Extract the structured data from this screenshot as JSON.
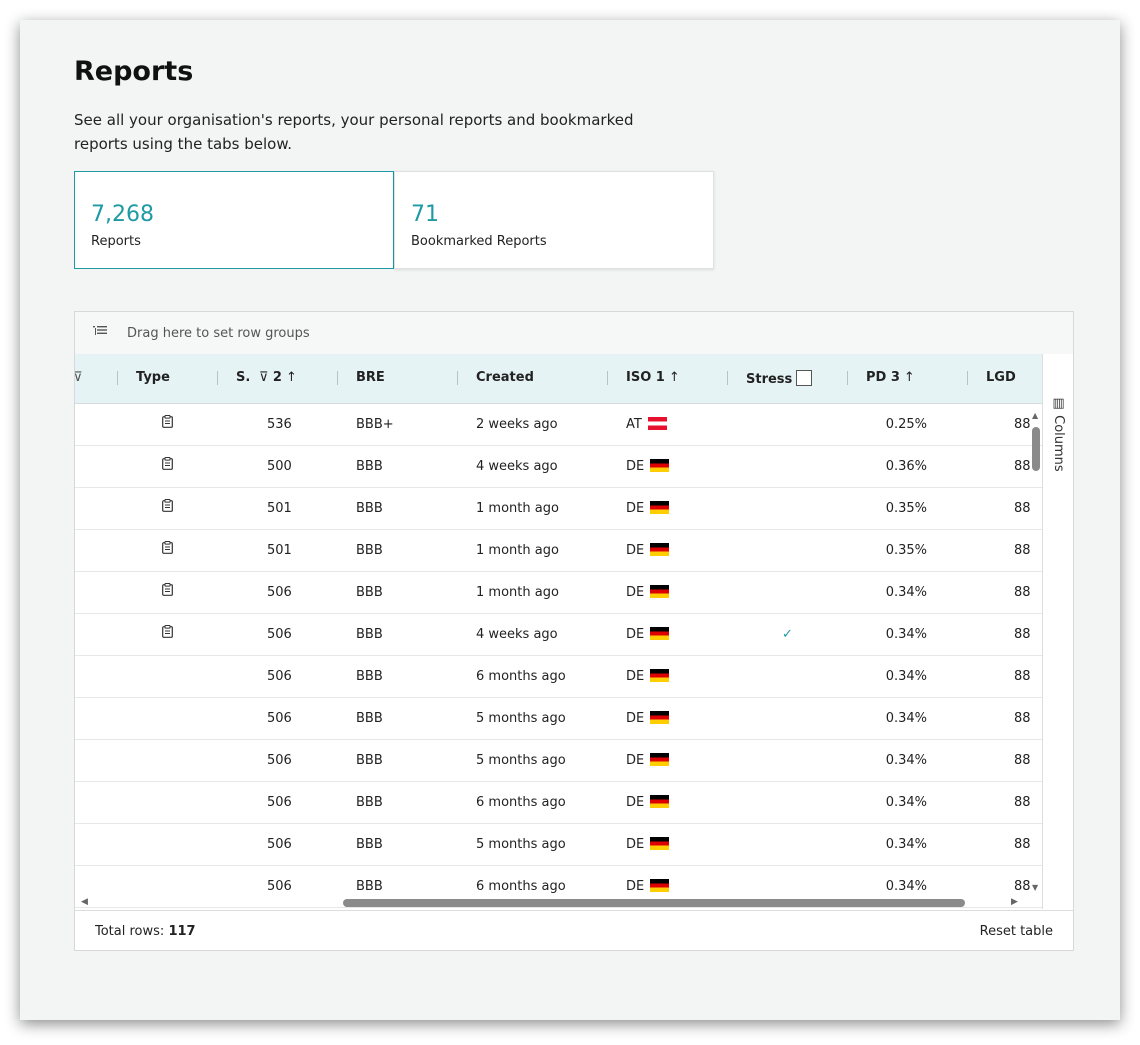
{
  "page": {
    "title": "Reports",
    "description": "See all your organisation's reports, your personal reports and bookmarked reports using the tabs below."
  },
  "tabs": [
    {
      "count": "7,268",
      "label": "Reports"
    },
    {
      "count": "71",
      "label": "Bookmarked Reports"
    }
  ],
  "group_bar": {
    "icon": "row-group-icon",
    "text": "Drag here to set row groups"
  },
  "columns": {
    "type": "Type",
    "s": "S.",
    "s_sort": "2",
    "bre": "BRE",
    "created": "Created",
    "iso": "ISO",
    "iso_sort": "1",
    "stress": "Stress",
    "pd": "PD",
    "pd_sort": "3",
    "lgd": "LGD"
  },
  "rows": [
    {
      "type_icon": true,
      "s": "536",
      "bre": "BBB+",
      "created": "2 weeks ago",
      "iso": "AT",
      "stress": false,
      "pd": "0.25%",
      "lgd": "88"
    },
    {
      "type_icon": true,
      "s": "500",
      "bre": "BBB",
      "created": "4 weeks ago",
      "iso": "DE",
      "stress": false,
      "pd": "0.36%",
      "lgd": "88"
    },
    {
      "type_icon": true,
      "s": "501",
      "bre": "BBB",
      "created": "1 month ago",
      "iso": "DE",
      "stress": false,
      "pd": "0.35%",
      "lgd": "88"
    },
    {
      "type_icon": true,
      "s": "501",
      "bre": "BBB",
      "created": "1 month ago",
      "iso": "DE",
      "stress": false,
      "pd": "0.35%",
      "lgd": "88"
    },
    {
      "type_icon": true,
      "s": "506",
      "bre": "BBB",
      "created": "1 month ago",
      "iso": "DE",
      "stress": false,
      "pd": "0.34%",
      "lgd": "88"
    },
    {
      "type_icon": true,
      "s": "506",
      "bre": "BBB",
      "created": "4 weeks ago",
      "iso": "DE",
      "stress": true,
      "pd": "0.34%",
      "lgd": "88"
    },
    {
      "type_icon": false,
      "s": "506",
      "bre": "BBB",
      "created": "6 months ago",
      "iso": "DE",
      "stress": false,
      "pd": "0.34%",
      "lgd": "88"
    },
    {
      "type_icon": false,
      "s": "506",
      "bre": "BBB",
      "created": "5 months ago",
      "iso": "DE",
      "stress": false,
      "pd": "0.34%",
      "lgd": "88"
    },
    {
      "type_icon": false,
      "s": "506",
      "bre": "BBB",
      "created": "5 months ago",
      "iso": "DE",
      "stress": false,
      "pd": "0.34%",
      "lgd": "88"
    },
    {
      "type_icon": false,
      "s": "506",
      "bre": "BBB",
      "created": "6 months ago",
      "iso": "DE",
      "stress": false,
      "pd": "0.34%",
      "lgd": "88"
    },
    {
      "type_icon": false,
      "s": "506",
      "bre": "BBB",
      "created": "5 months ago",
      "iso": "DE",
      "stress": false,
      "pd": "0.34%",
      "lgd": "88"
    },
    {
      "type_icon": false,
      "s": "506",
      "bre": "BBB",
      "created": "6 months ago",
      "iso": "DE",
      "stress": false,
      "pd": "0.34%",
      "lgd": "88"
    }
  ],
  "sidebar": {
    "label": "Columns",
    "icon": "columns-icon"
  },
  "footer": {
    "total_label": "Total rows:",
    "total_value": "117",
    "reset": "Reset table"
  },
  "colors": {
    "accent": "#1e9aa5",
    "header_bg": "#e6f3f5"
  }
}
